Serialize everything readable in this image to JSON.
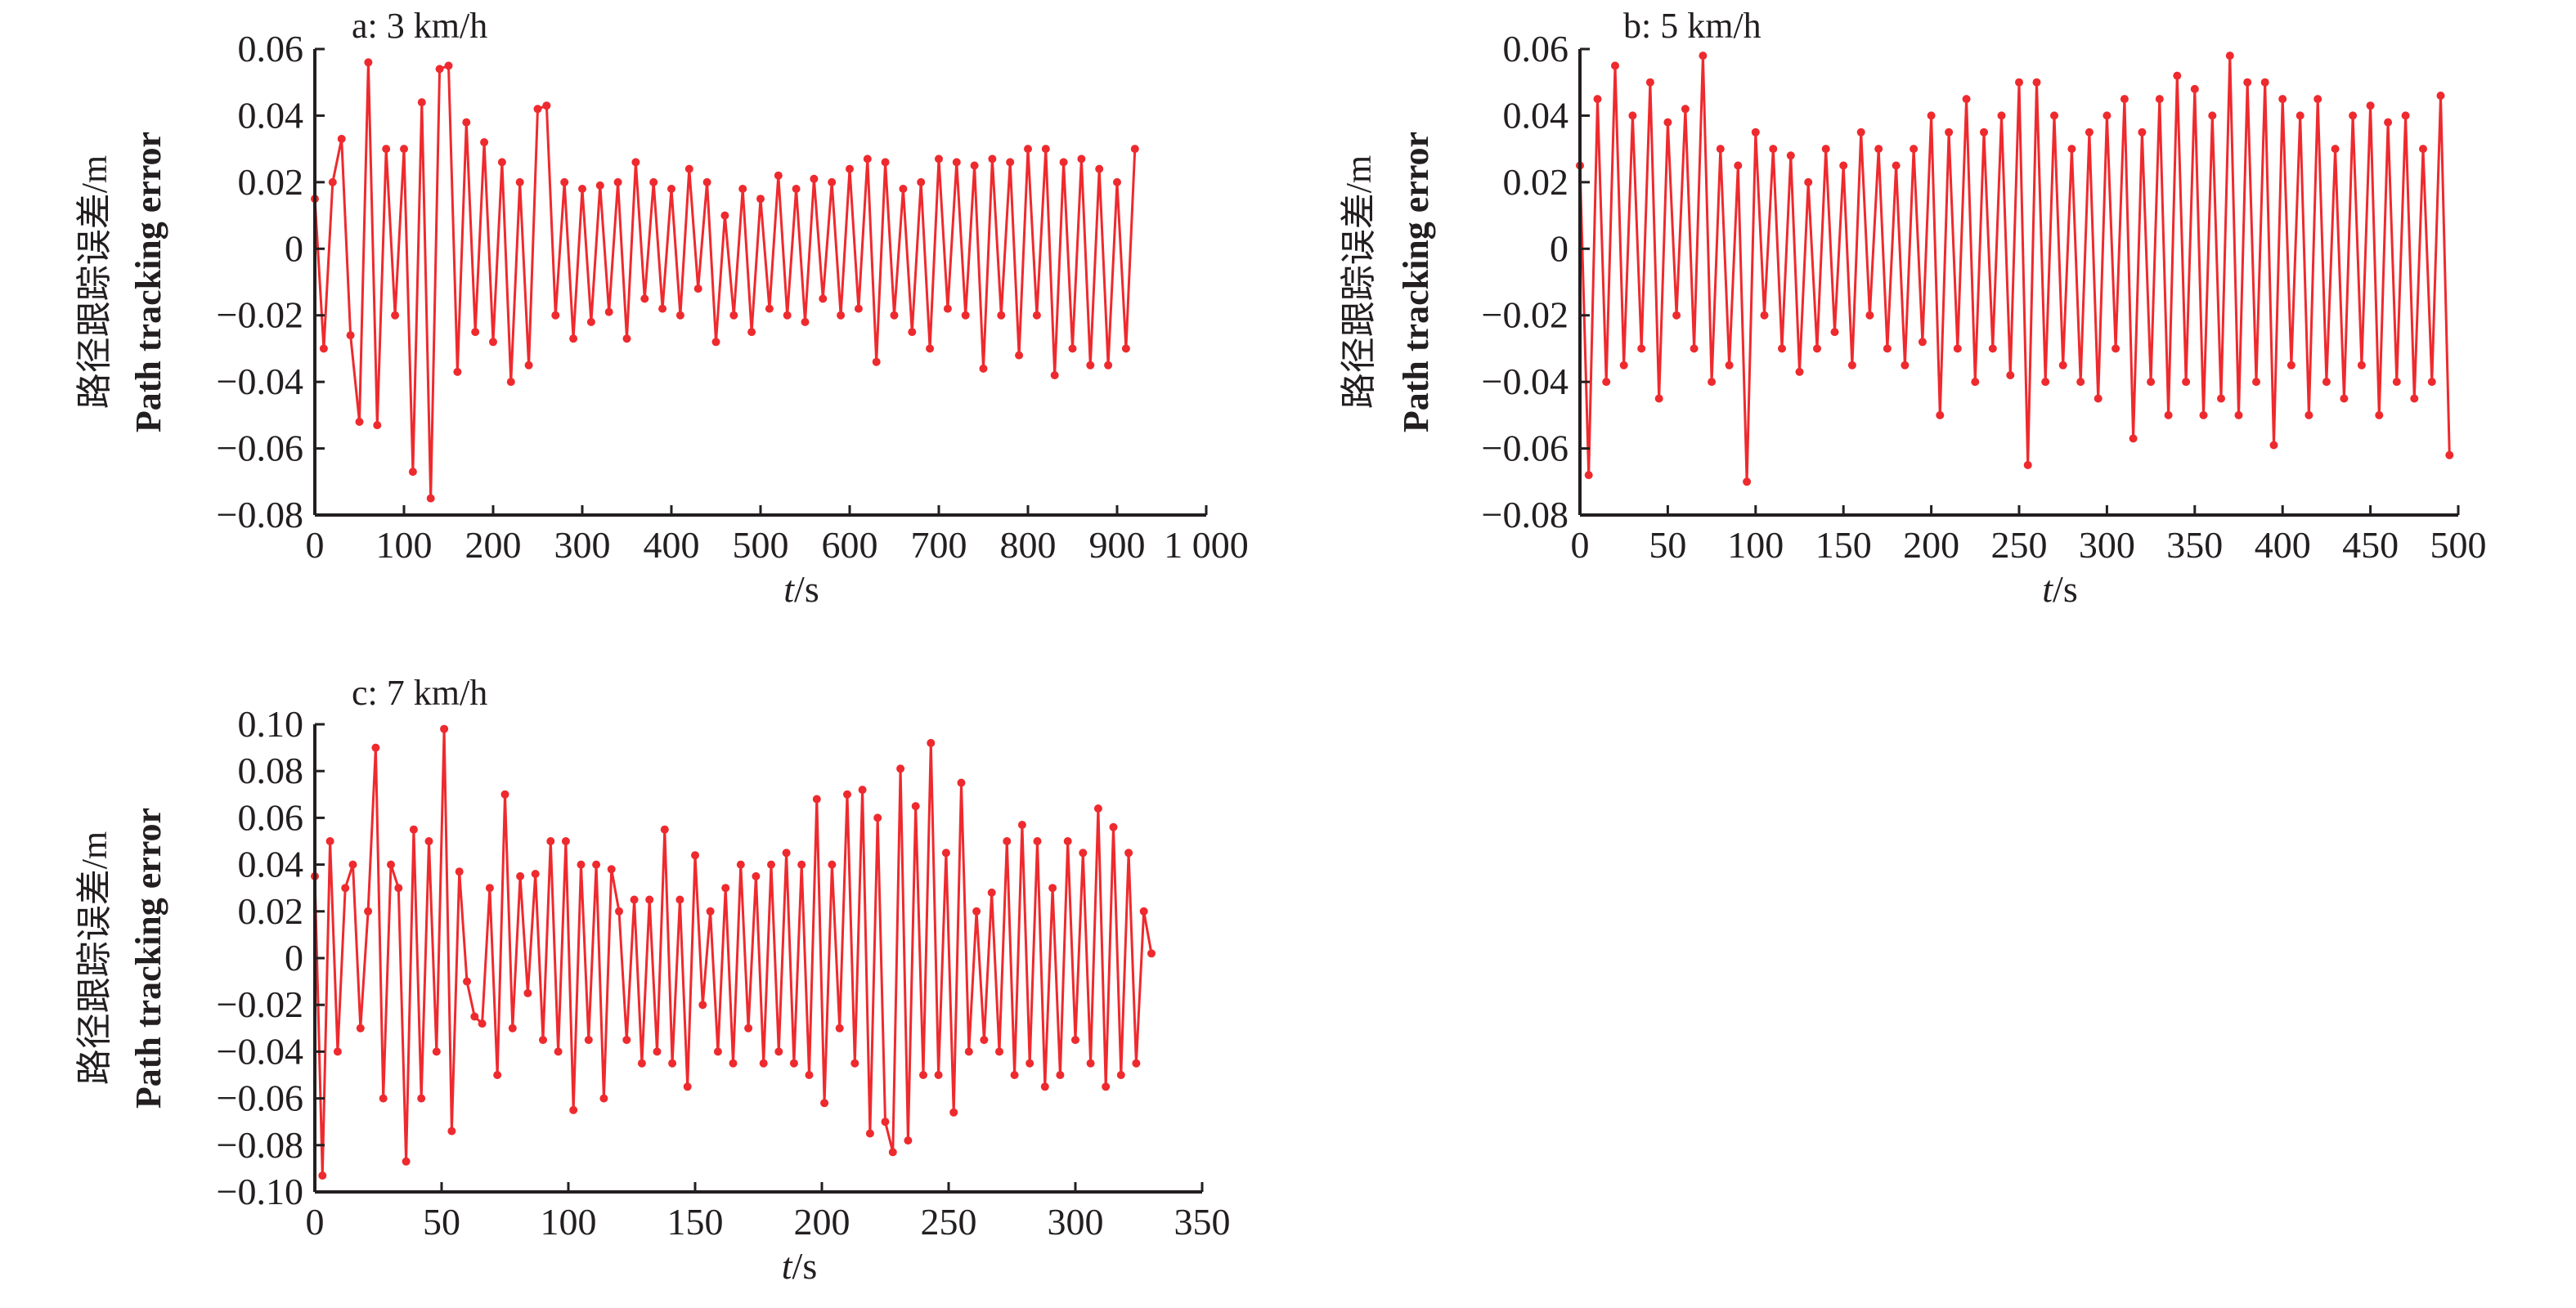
{
  "colors": {
    "series": "#ee2a2e",
    "axis": "#231f20"
  },
  "chart_data": [
    {
      "type": "line",
      "title": "a: 3 km/h",
      "xlabel_italic": "t",
      "xlabel_rest": "/s",
      "ylabel_cn": "路径跟踪误差/m",
      "ylabel_en": "Path tracking error",
      "xlim": [
        0,
        1000
      ],
      "ylim": [
        -0.08,
        0.06
      ],
      "xticks": [
        0,
        100,
        200,
        300,
        400,
        500,
        600,
        700,
        800,
        900,
        1000
      ],
      "xtick_labels": [
        "0",
        "100",
        "200",
        "300",
        "400",
        "500",
        "600",
        "700",
        "800",
        "900",
        "1 000"
      ],
      "yticks": [
        0.06,
        0.04,
        0.02,
        0,
        -0.02,
        -0.04,
        -0.06,
        -0.08
      ],
      "ytick_labels": [
        "0.06",
        "0.04",
        "0.02",
        "0",
        "−0.02",
        "−0.04",
        "−0.06",
        "−0.08"
      ],
      "x_start": 0,
      "x_step": 10,
      "values": [
        0.015,
        -0.03,
        0.02,
        0.033,
        -0.026,
        -0.052,
        0.056,
        -0.053,
        0.03,
        -0.02,
        0.03,
        -0.067,
        0.044,
        -0.075,
        0.054,
        0.055,
        -0.037,
        0.038,
        -0.025,
        0.032,
        -0.028,
        0.026,
        -0.04,
        0.02,
        -0.035,
        0.042,
        0.043,
        -0.02,
        0.02,
        -0.027,
        0.018,
        -0.022,
        0.019,
        -0.019,
        0.02,
        -0.027,
        0.026,
        -0.015,
        0.02,
        -0.018,
        0.018,
        -0.02,
        0.024,
        -0.012,
        0.02,
        -0.028,
        0.01,
        -0.02,
        0.018,
        -0.025,
        0.015,
        -0.018,
        0.022,
        -0.02,
        0.018,
        -0.022,
        0.021,
        -0.015,
        0.02,
        -0.02,
        0.024,
        -0.018,
        0.027,
        -0.034,
        0.026,
        -0.02,
        0.018,
        -0.025,
        0.02,
        -0.03,
        0.027,
        -0.018,
        0.026,
        -0.02,
        0.025,
        -0.036,
        0.027,
        -0.02,
        0.026,
        -0.032,
        0.03,
        -0.02,
        0.03,
        -0.038,
        0.026,
        -0.03,
        0.027,
        -0.035,
        0.024,
        -0.035,
        0.02,
        -0.03,
        0.03
      ]
    },
    {
      "type": "line",
      "title": "b: 5 km/h",
      "xlabel_italic": "t",
      "xlabel_rest": "/s",
      "ylabel_cn": "路径跟踪误差/m",
      "ylabel_en": "Path tracking error",
      "xlim": [
        0,
        500
      ],
      "ylim": [
        -0.08,
        0.06
      ],
      "xticks": [
        0,
        50,
        100,
        150,
        200,
        250,
        300,
        350,
        400,
        450,
        500
      ],
      "xtick_labels": [
        "0",
        "50",
        "100",
        "150",
        "200",
        "250",
        "300",
        "350",
        "400",
        "450",
        "500"
      ],
      "yticks": [
        0.06,
        0.04,
        0.02,
        0,
        -0.02,
        -0.04,
        -0.06,
        -0.08
      ],
      "ytick_labels": [
        "0.06",
        "0.04",
        "0.02",
        "0",
        "−0.02",
        "−0.04",
        "−0.06",
        "−0.08"
      ],
      "x_start": 0,
      "x_step": 5,
      "values": [
        0.025,
        -0.068,
        0.045,
        -0.04,
        0.055,
        -0.035,
        0.04,
        -0.03,
        0.05,
        -0.045,
        0.038,
        -0.02,
        0.042,
        -0.03,
        0.058,
        -0.04,
        0.03,
        -0.035,
        0.025,
        -0.07,
        0.035,
        -0.02,
        0.03,
        -0.03,
        0.028,
        -0.037,
        0.02,
        -0.03,
        0.03,
        -0.025,
        0.025,
        -0.035,
        0.035,
        -0.02,
        0.03,
        -0.03,
        0.025,
        -0.035,
        0.03,
        -0.028,
        0.04,
        -0.05,
        0.035,
        -0.03,
        0.045,
        -0.04,
        0.035,
        -0.03,
        0.04,
        -0.038,
        0.05,
        -0.065,
        0.05,
        -0.04,
        0.04,
        -0.035,
        0.03,
        -0.04,
        0.035,
        -0.045,
        0.04,
        -0.03,
        0.045,
        -0.057,
        0.035,
        -0.04,
        0.045,
        -0.05,
        0.052,
        -0.04,
        0.048,
        -0.05,
        0.04,
        -0.045,
        0.058,
        -0.05,
        0.05,
        -0.04,
        0.05,
        -0.059,
        0.045,
        -0.035,
        0.04,
        -0.05,
        0.045,
        -0.04,
        0.03,
        -0.045,
        0.04,
        -0.035,
        0.043,
        -0.05,
        0.038,
        -0.04,
        0.04,
        -0.045,
        0.03,
        -0.04,
        0.046,
        -0.062
      ]
    },
    {
      "type": "line",
      "title": "c: 7 km/h",
      "xlabel_italic": "t",
      "xlabel_rest": "/s",
      "ylabel_cn": "路径跟踪误差/m",
      "ylabel_en": "Path tracking error",
      "xlim": [
        0,
        350
      ],
      "ylim": [
        -0.1,
        0.1
      ],
      "xticks": [
        0,
        50,
        100,
        150,
        200,
        250,
        300,
        350
      ],
      "xtick_labels": [
        "0",
        "50",
        "100",
        "150",
        "200",
        "250",
        "300",
        "350"
      ],
      "yticks": [
        0.1,
        0.08,
        0.06,
        0.04,
        0.02,
        0,
        -0.02,
        -0.04,
        -0.06,
        -0.08,
        -0.1
      ],
      "ytick_labels": [
        "0.10",
        "0.08",
        "0.06",
        "0.04",
        "0.02",
        "0",
        "−0.02",
        "−0.04",
        "−0.06",
        "−0.08",
        "−0.10"
      ],
      "x_start": 0,
      "x_step": 3,
      "values": [
        0.035,
        -0.093,
        0.05,
        -0.04,
        0.03,
        0.04,
        -0.03,
        0.02,
        0.09,
        -0.06,
        0.04,
        0.03,
        -0.087,
        0.055,
        -0.06,
        0.05,
        -0.04,
        0.098,
        -0.074,
        0.037,
        -0.01,
        -0.025,
        -0.028,
        0.03,
        -0.05,
        0.07,
        -0.03,
        0.035,
        -0.015,
        0.036,
        -0.035,
        0.05,
        -0.04,
        0.05,
        -0.065,
        0.04,
        -0.035,
        0.04,
        -0.06,
        0.038,
        0.02,
        -0.035,
        0.025,
        -0.045,
        0.025,
        -0.04,
        0.055,
        -0.045,
        0.025,
        -0.055,
        0.044,
        -0.02,
        0.02,
        -0.04,
        0.03,
        -0.045,
        0.04,
        -0.03,
        0.035,
        -0.045,
        0.04,
        -0.04,
        0.045,
        -0.045,
        0.04,
        -0.05,
        0.068,
        -0.062,
        0.04,
        -0.03,
        0.07,
        -0.045,
        0.072,
        -0.075,
        0.06,
        -0.07,
        -0.083,
        0.081,
        -0.078,
        0.065,
        -0.05,
        0.092,
        -0.05,
        0.045,
        -0.066,
        0.075,
        -0.04,
        0.02,
        -0.035,
        0.028,
        -0.04,
        0.05,
        -0.05,
        0.057,
        -0.045,
        0.05,
        -0.055,
        0.03,
        -0.05,
        0.05,
        -0.035,
        0.045,
        -0.045,
        0.064,
        -0.055,
        0.056,
        -0.05,
        0.045,
        -0.045,
        0.02,
        0.002
      ]
    }
  ]
}
